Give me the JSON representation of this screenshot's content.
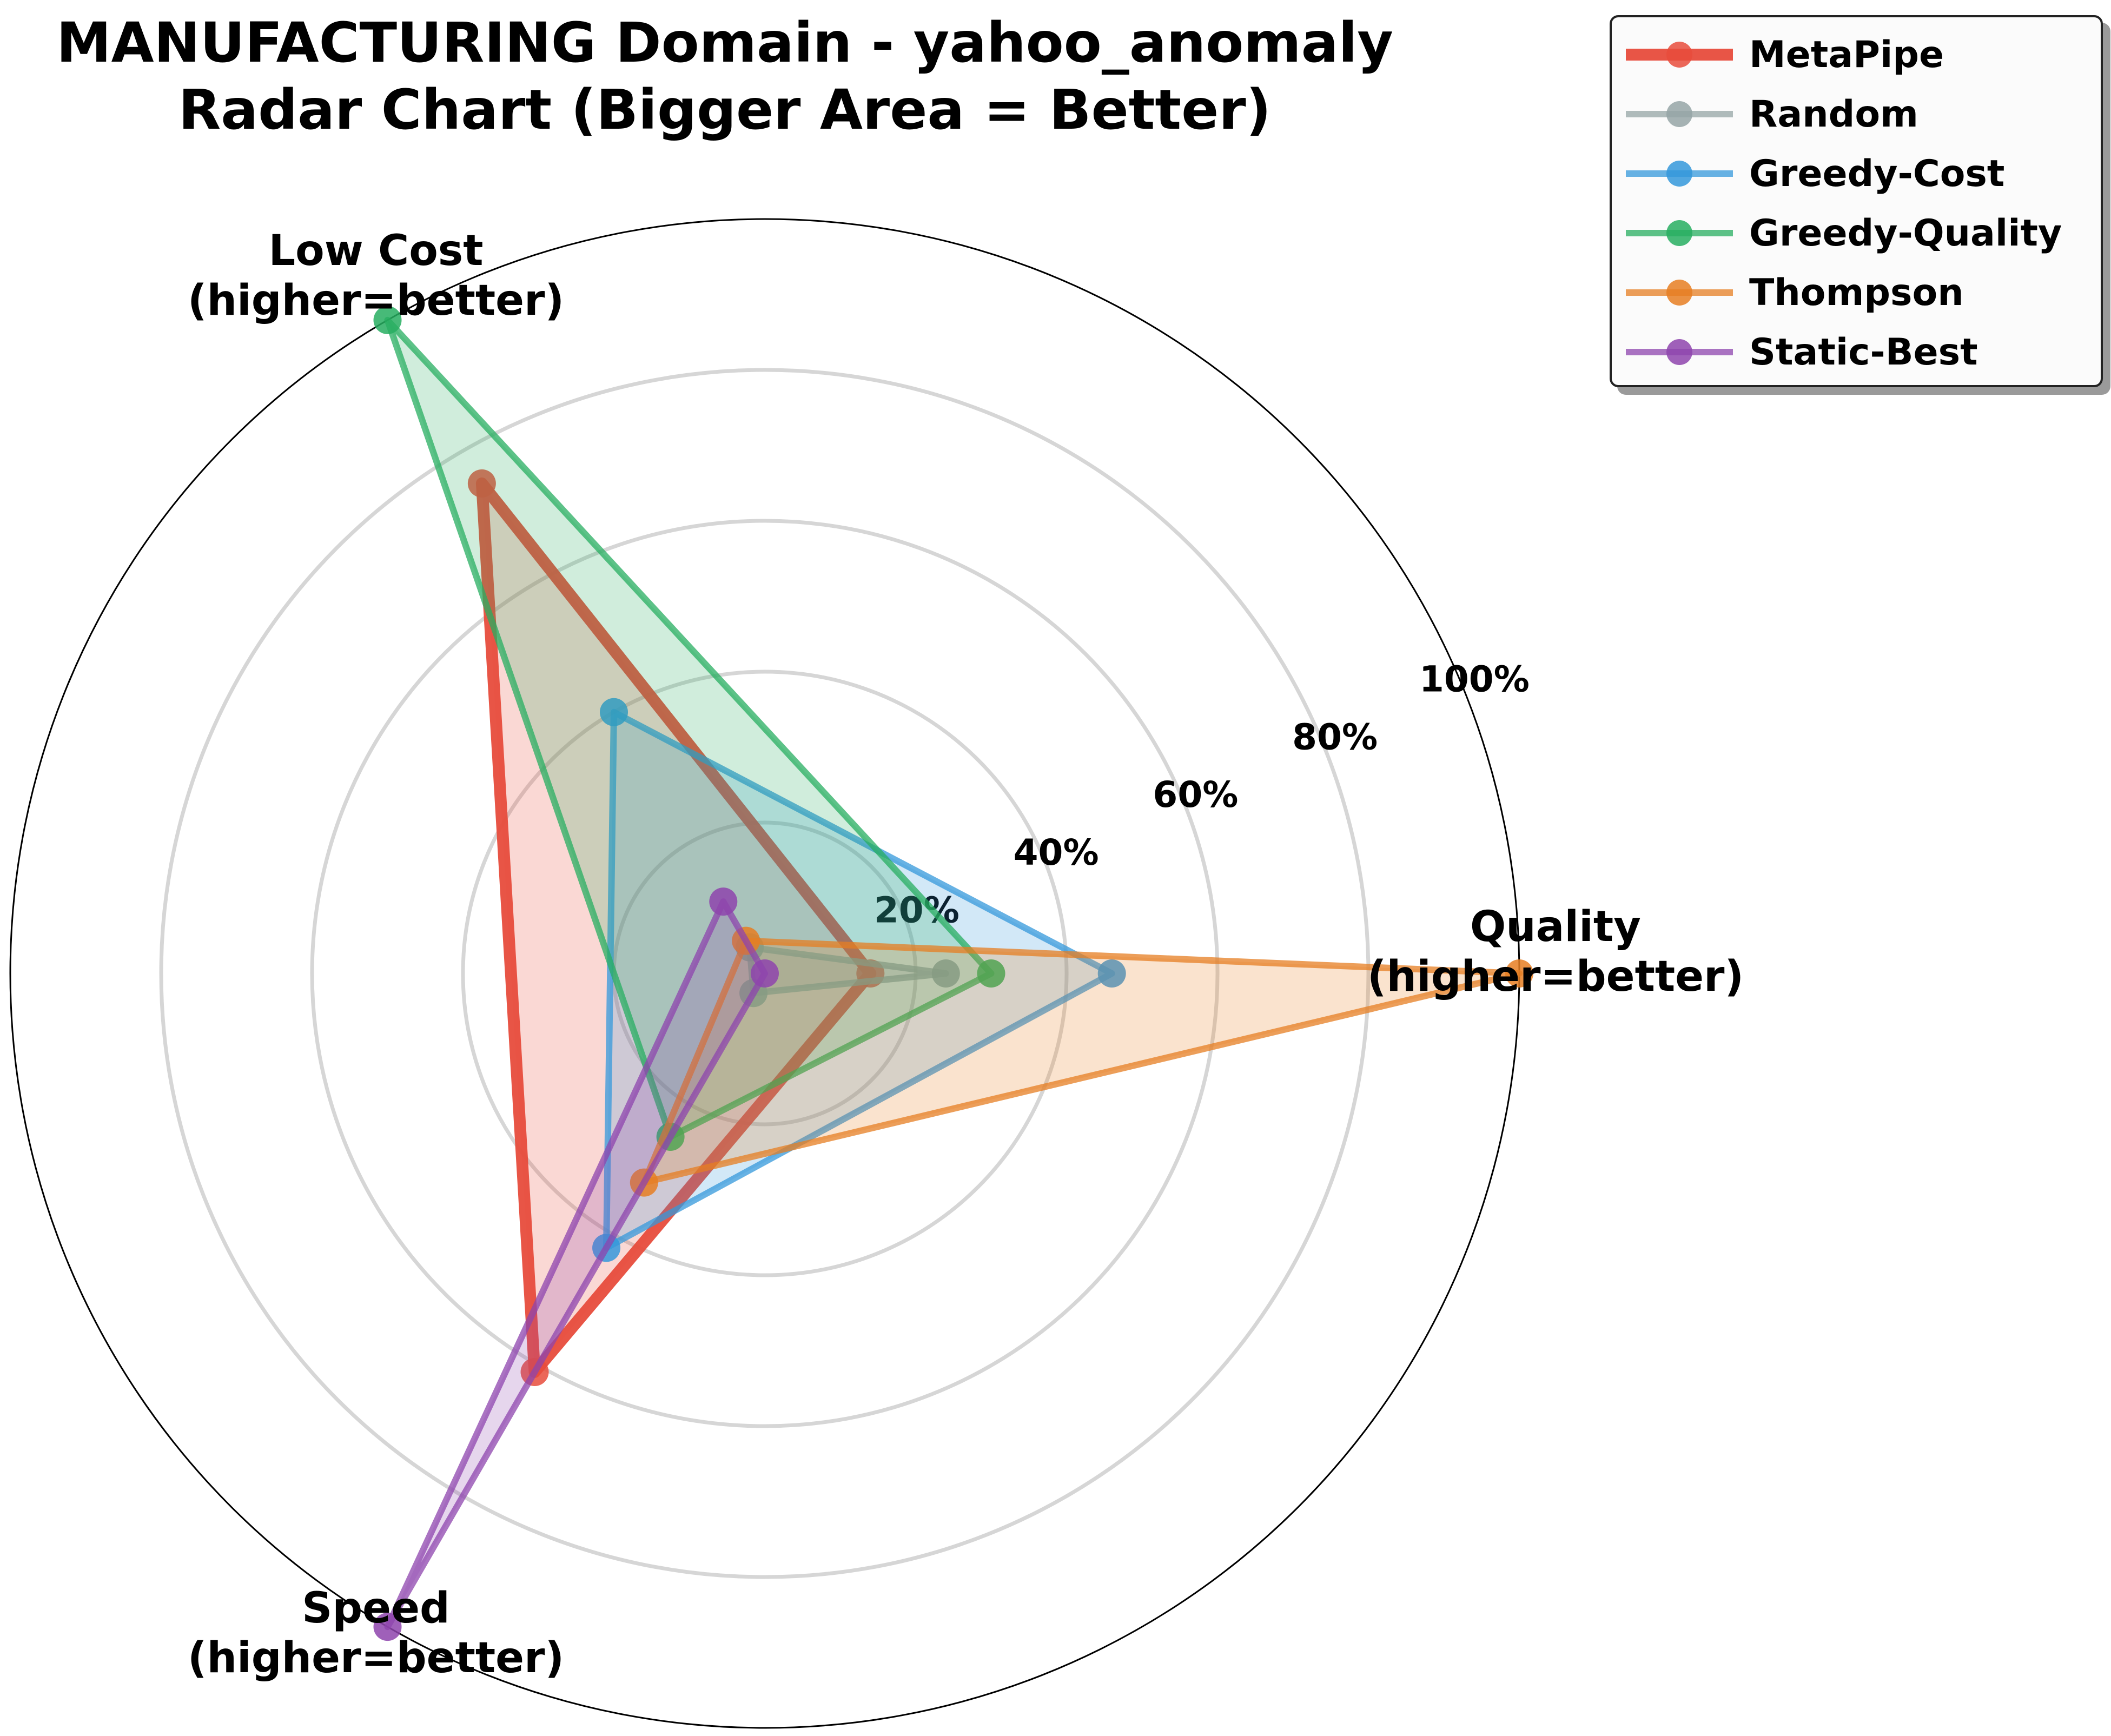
{
  "chart_data": {
    "type": "radar",
    "title": "MANUFACTURING Domain - yahoo_anomaly\nRadar Chart (Bigger Area = Better)",
    "axes": [
      "Quality\n(higher=better)",
      "Low Cost\n(higher=better)",
      "Speed\n(higher=better)"
    ],
    "tick_labels": [
      "20%",
      "40%",
      "60%",
      "80%",
      "100%"
    ],
    "ylim": [
      0,
      1
    ],
    "grid": true,
    "legend_position": "top-right",
    "series": [
      {
        "name": "MetaPipe",
        "color": "#e74c3c",
        "values": [
          0.14,
          0.75,
          0.61
        ]
      },
      {
        "name": "Random",
        "color": "#95a5a6",
        "values": [
          0.24,
          0.04,
          0.03
        ]
      },
      {
        "name": "Greedy-Cost",
        "color": "#3498db",
        "values": [
          0.46,
          0.4,
          0.42
        ]
      },
      {
        "name": "Greedy-Quality",
        "color": "#27ae60",
        "values": [
          0.3,
          1.0,
          0.25
        ]
      },
      {
        "name": "Thompson",
        "color": "#e67e22",
        "values": [
          1.0,
          0.05,
          0.32
        ]
      },
      {
        "name": "Static-Best",
        "color": "#8e44ad",
        "values": [
          0.0,
          0.11,
          1.0
        ]
      }
    ]
  }
}
